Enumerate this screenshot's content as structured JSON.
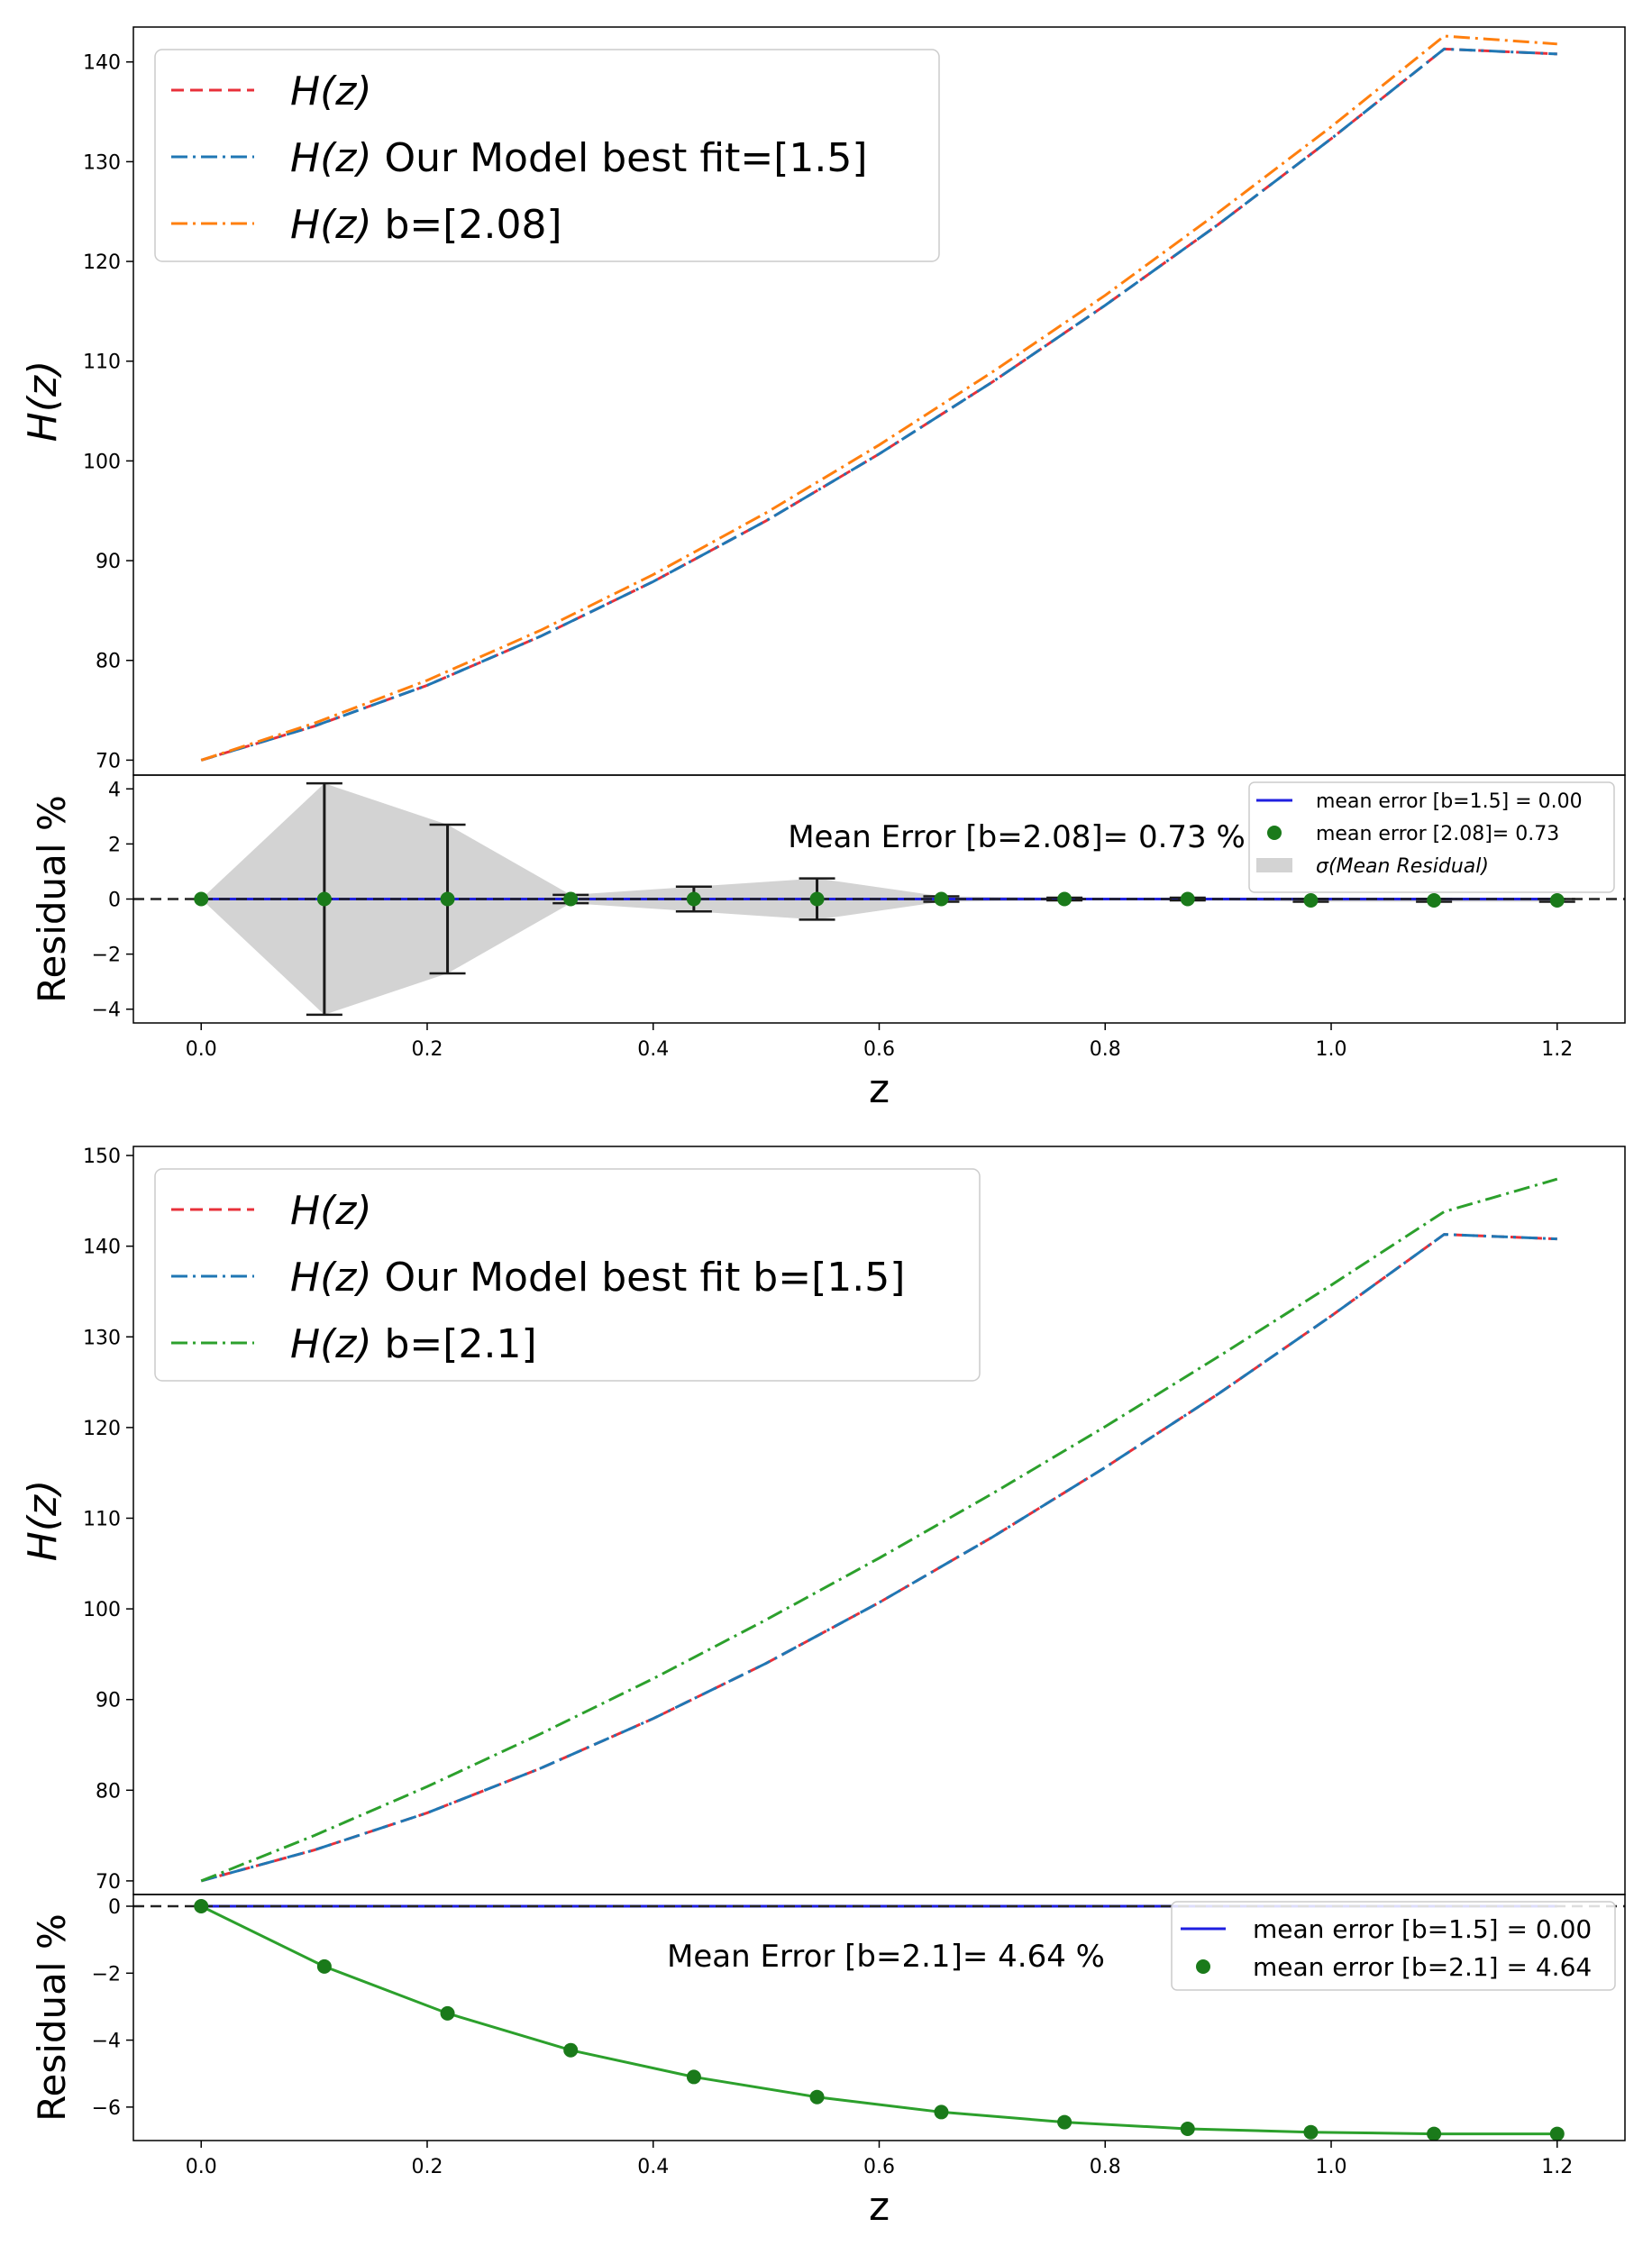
{
  "colors": {
    "hz": "#e8303a",
    "model": "#1f77b4",
    "orange": "#ff7f0e",
    "green": "#2ca02c",
    "green_dot": "#1a7a1a",
    "blue": "#1f1fe0",
    "band": "#d3d3d3",
    "errbar": "#1a1a1a",
    "zero": "#222222"
  },
  "chart_data": [
    {
      "type": "line",
      "panel": "top-main",
      "ylabel": "H(z)",
      "xlim": [
        -0.06,
        1.26
      ],
      "ylim": [
        68.5,
        143.5
      ],
      "yticks": [
        70,
        80,
        90,
        100,
        110,
        120,
        130,
        140
      ],
      "legend_loc": "upper-left",
      "series": [
        {
          "name": "H(z)",
          "label_rest": "",
          "color_key": "hz",
          "dash": "dash",
          "x": [
            0,
            0.1,
            0.2,
            0.3,
            0.4,
            0.5,
            0.6,
            0.7,
            0.8,
            0.9,
            1.0,
            1.1,
            1.2
          ],
          "y": [
            70.0,
            73.4,
            77.5,
            82.4,
            87.9,
            94.0,
            100.7,
            107.9,
            115.6,
            123.7,
            132.3,
            141.3,
            140.8
          ]
        },
        {
          "name": "H(z)",
          "label_rest": " Our Model best fit=[1.5]",
          "color_key": "model",
          "dash": "dashdot",
          "x": [
            0,
            0.1,
            0.2,
            0.3,
            0.4,
            0.5,
            0.6,
            0.7,
            0.8,
            0.9,
            1.0,
            1.1,
            1.2
          ],
          "y": [
            70.0,
            73.4,
            77.5,
            82.4,
            87.9,
            94.0,
            100.7,
            107.9,
            115.6,
            123.7,
            132.3,
            141.3,
            140.8
          ]
        },
        {
          "name": "H(z)",
          "label_rest": " b=[2.08]",
          "color_key": "orange",
          "dash": "dashdot",
          "x": [
            0,
            0.1,
            0.2,
            0.3,
            0.4,
            0.5,
            0.6,
            0.7,
            0.8,
            0.9,
            1.0,
            1.1,
            1.2
          ],
          "y": [
            70.0,
            73.7,
            78.0,
            83.0,
            88.6,
            94.8,
            101.6,
            108.9,
            116.6,
            124.9,
            133.5,
            142.6,
            141.8
          ]
        }
      ]
    },
    {
      "type": "scatter",
      "panel": "top-residual",
      "ylabel": "Residual %",
      "xlabel": "z",
      "xlim": [
        -0.06,
        1.26
      ],
      "ylim": [
        -4.5,
        4.5
      ],
      "yticks": [
        -4,
        -2,
        0,
        2,
        4
      ],
      "xticks": [
        0.0,
        0.2,
        0.4,
        0.6,
        0.8,
        1.0,
        1.2
      ],
      "annotation": "Mean Error [b=2.08]= 0.73 %",
      "legend_loc": "upper-right",
      "legend": [
        "mean error [b=1.5] = 0.00",
        "mean error [2.08]= 0.73",
        "σ(Mean Residual)"
      ],
      "x": [
        0.0,
        0.109,
        0.218,
        0.327,
        0.436,
        0.545,
        0.655,
        0.764,
        0.873,
        0.982,
        1.091,
        1.2
      ],
      "y": [
        0.0,
        0.0,
        0.0,
        0.0,
        0.0,
        0.0,
        0.0,
        0.0,
        0.0,
        -0.05,
        -0.05,
        -0.05
      ],
      "err": [
        0.0,
        4.2,
        2.7,
        0.15,
        0.45,
        0.75,
        0.1,
        0.05,
        0.05,
        0.05,
        0.05,
        0.05
      ]
    },
    {
      "type": "line",
      "panel": "bottom-main",
      "ylabel": "H(z)",
      "xlim": [
        -0.06,
        1.26
      ],
      "ylim": [
        68.5,
        151
      ],
      "yticks": [
        70,
        80,
        90,
        100,
        110,
        120,
        130,
        140,
        150
      ],
      "legend_loc": "upper-left",
      "series": [
        {
          "name": "H(z)",
          "label_rest": "",
          "color_key": "hz",
          "dash": "dash",
          "x": [
            0,
            0.1,
            0.2,
            0.3,
            0.4,
            0.5,
            0.6,
            0.7,
            0.8,
            0.9,
            1.0,
            1.1,
            1.2
          ],
          "y": [
            70.0,
            73.4,
            77.5,
            82.4,
            87.9,
            94.0,
            100.7,
            107.9,
            115.6,
            123.7,
            132.3,
            141.3,
            140.8
          ]
        },
        {
          "name": "H(z)",
          "label_rest": " Our Model best fit b=[1.5]",
          "color_key": "model",
          "dash": "dashdot",
          "x": [
            0,
            0.1,
            0.2,
            0.3,
            0.4,
            0.5,
            0.6,
            0.7,
            0.8,
            0.9,
            1.0,
            1.1,
            1.2
          ],
          "y": [
            70.0,
            73.4,
            77.5,
            82.4,
            87.9,
            94.0,
            100.7,
            107.9,
            115.6,
            123.7,
            132.3,
            141.3,
            140.8
          ]
        },
        {
          "name": "H(z)",
          "label_rest": " b=[2.1]",
          "color_key": "green",
          "dash": "dashdot",
          "x": [
            0,
            0.1,
            0.2,
            0.3,
            0.4,
            0.5,
            0.6,
            0.7,
            0.8,
            0.9,
            1.0,
            1.1,
            1.2
          ],
          "y": [
            70.0,
            75.0,
            80.4,
            86.2,
            92.3,
            98.8,
            105.6,
            112.7,
            120.1,
            127.8,
            135.7,
            143.8,
            147.4
          ]
        }
      ]
    },
    {
      "type": "line",
      "panel": "bottom-residual",
      "ylabel": "Residual %",
      "xlabel": "z",
      "xlim": [
        -0.06,
        1.26
      ],
      "ylim": [
        -7.0,
        0.35
      ],
      "yticks": [
        -6,
        -4,
        -2,
        0
      ],
      "xticks": [
        0.0,
        0.2,
        0.4,
        0.6,
        0.8,
        1.0,
        1.2
      ],
      "annotation": "Mean Error [b=2.1]= 4.64 %",
      "legend_loc": "upper-right",
      "legend": [
        "mean error [b=1.5] = 0.00",
        "mean error [b=2.1] = 4.64"
      ],
      "x": [
        0.0,
        0.109,
        0.218,
        0.327,
        0.436,
        0.545,
        0.655,
        0.764,
        0.873,
        0.982,
        1.091,
        1.2
      ],
      "y": [
        0.0,
        -1.8,
        -3.2,
        -4.3,
        -5.1,
        -5.7,
        -6.15,
        -6.45,
        -6.65,
        -6.75,
        -6.8,
        -6.8
      ]
    }
  ]
}
